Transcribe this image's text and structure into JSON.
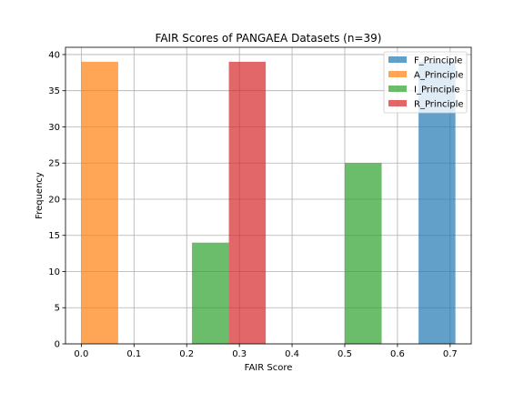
{
  "chart_data": {
    "type": "bar",
    "title": "FAIR Scores of PANGAEA Datasets (n=39)",
    "xlabel": "FAIR Score",
    "ylabel": "Frequency",
    "xlim": [
      -0.03,
      0.74
    ],
    "ylim": [
      0,
      41
    ],
    "xticks": [
      0.0,
      0.1,
      0.2,
      0.3,
      0.4,
      0.5,
      0.6,
      0.7
    ],
    "xtick_labels": [
      "0.0",
      "0.1",
      "0.2",
      "0.3",
      "0.4",
      "0.5",
      "0.6",
      "0.7"
    ],
    "yticks": [
      0,
      5,
      10,
      15,
      20,
      25,
      30,
      35,
      40
    ],
    "ytick_labels": [
      "0",
      "5",
      "10",
      "15",
      "20",
      "25",
      "30",
      "35",
      "40"
    ],
    "grid": true,
    "legend_position": "top-right",
    "series": [
      {
        "name": "F_Principle",
        "color": "#1f77b4",
        "bars": [
          {
            "x0": 0.64,
            "x1": 0.71,
            "value": 39
          }
        ]
      },
      {
        "name": "A_Principle",
        "color": "#ff7f0e",
        "bars": [
          {
            "x0": 0.0,
            "x1": 0.07,
            "value": 39
          }
        ]
      },
      {
        "name": "I_Principle",
        "color": "#2ca02c",
        "bars": [
          {
            "x0": 0.21,
            "x1": 0.28,
            "value": 14
          },
          {
            "x0": 0.5,
            "x1": 0.57,
            "value": 25
          }
        ]
      },
      {
        "name": "R_Principle",
        "color": "#d62728",
        "bars": [
          {
            "x0": 0.28,
            "x1": 0.35,
            "value": 39
          }
        ]
      }
    ]
  }
}
